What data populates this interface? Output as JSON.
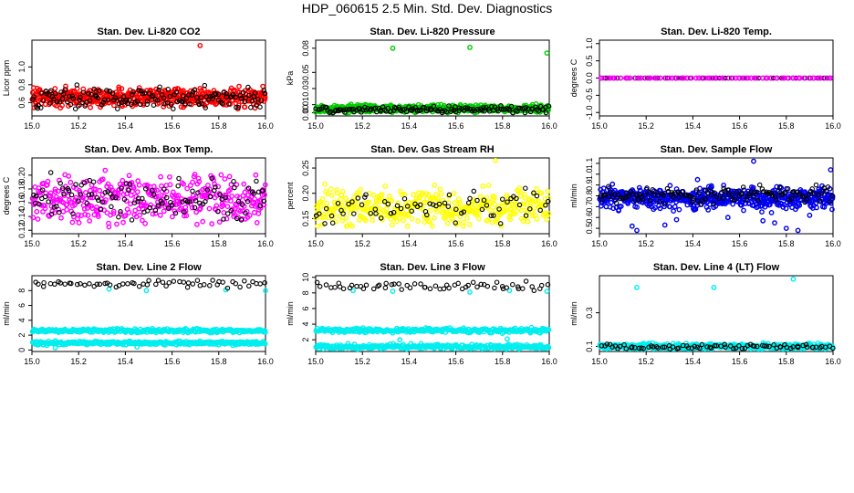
{
  "figure": {
    "title": "HDP_060615  2.5 Min. Std. Dev. Diagnostics"
  },
  "chart_data": [
    {
      "type": "scatter",
      "title": "Stan. Dev. Li-820 CO2",
      "ylabel": "Licor ppm",
      "xlim": [
        15.0,
        16.0
      ],
      "xticks": [
        "15.0",
        "15.2",
        "15.4",
        "15.6",
        "15.8",
        "16.0"
      ],
      "ylim": [
        0.45,
        1.3
      ],
      "yticks": [
        0.6,
        0.8,
        1.0
      ],
      "ytick_labels": [
        "0.6",
        "0.8",
        "1.0"
      ],
      "series": [
        {
          "color": "#ff0000",
          "n": 480,
          "mean": 0.66,
          "sd": 0.05,
          "min": 0.53,
          "max": 0.8,
          "outliers": [
            [
              15.72,
              1.24
            ]
          ]
        },
        {
          "color": "#000000",
          "n": 150,
          "mean": 0.66,
          "sd": 0.06,
          "min": 0.53,
          "max": 0.8,
          "outliers": []
        }
      ]
    },
    {
      "type": "scatter",
      "title": "Stan. Dev. Li-820 Pressure",
      "ylabel": "kPa",
      "xlim": [
        15.0,
        16.0
      ],
      "xticks": [
        "15.0",
        "15.2",
        "15.4",
        "15.6",
        "15.8",
        "16.0"
      ],
      "ylim": [
        -0.004,
        0.09
      ],
      "yticks": [
        0.0,
        0.01,
        0.03,
        0.05,
        0.08
      ],
      "ytick_labels": [
        "0.00",
        "0.01",
        "0.03",
        "0.05",
        "0.08"
      ],
      "series": [
        {
          "color": "#00cc00",
          "n": 480,
          "mean": 0.005,
          "sd": 0.0025,
          "min": 0.0,
          "max": 0.012,
          "outliers": [
            [
              15.33,
              0.08
            ],
            [
              15.66,
              0.081
            ],
            [
              15.99,
              0.074
            ]
          ]
        },
        {
          "color": "#000000",
          "n": 140,
          "mean": 0.004,
          "sd": 0.002,
          "min": 0.0,
          "max": 0.01,
          "outliers": []
        }
      ]
    },
    {
      "type": "scatter",
      "title": "Stan. Dev. Li-820 Temp.",
      "ylabel": "degrees C",
      "xlim": [
        15.0,
        16.0
      ],
      "xticks": [
        "15.0",
        "15.2",
        "15.4",
        "15.6",
        "15.8",
        "16.0"
      ],
      "ylim": [
        -1.1,
        1.1
      ],
      "yticks": [
        -1.0,
        -0.5,
        0.0,
        0.5,
        1.0
      ],
      "ytick_labels": [
        "-1.0",
        "-0.5",
        "0.0",
        "0.5",
        "1.0"
      ],
      "series": [
        {
          "color": "#000000",
          "n": 70,
          "mean": 0.0,
          "sd": 0.0,
          "min": 0.0,
          "max": 0.0,
          "outliers": []
        },
        {
          "color": "#ff00ff",
          "n": 70,
          "mean": 0.0,
          "sd": 0.0,
          "min": 0.0,
          "max": 0.0,
          "outliers": []
        }
      ]
    },
    {
      "type": "scatter",
      "title": "Stan. Dev. Amb. Box Temp.",
      "ylabel": "degrees C",
      "xlim": [
        15.0,
        16.0
      ],
      "xticks": [
        "15.0",
        "15.2",
        "15.4",
        "15.6",
        "15.8",
        "16.0"
      ],
      "ylim": [
        0.115,
        0.225
      ],
      "yticks": [
        0.12,
        0.14,
        0.16,
        0.18,
        0.2
      ],
      "ytick_labels": [
        "0.12",
        "0.14",
        "0.16",
        "0.18",
        "0.20"
      ],
      "series": [
        {
          "color": "#ff00ff",
          "n": 380,
          "mean": 0.165,
          "sd": 0.017,
          "min": 0.125,
          "max": 0.22,
          "outliers": []
        },
        {
          "color": "#000000",
          "n": 110,
          "mean": 0.168,
          "sd": 0.016,
          "min": 0.135,
          "max": 0.205,
          "outliers": []
        }
      ]
    },
    {
      "type": "scatter",
      "title": "Stan. Dev. Gas Stream RH",
      "ylabel": "percent",
      "xlim": [
        15.0,
        16.0
      ],
      "xticks": [
        "15.0",
        "15.2",
        "15.4",
        "15.6",
        "15.8",
        "16.0"
      ],
      "ylim": [
        0.12,
        0.27
      ],
      "yticks": [
        0.15,
        0.2,
        0.25
      ],
      "ytick_labels": [
        "0.15",
        "0.20",
        "0.25"
      ],
      "series": [
        {
          "color": "#ffff00",
          "n": 380,
          "mean": 0.17,
          "sd": 0.018,
          "min": 0.135,
          "max": 0.225,
          "outliers": [
            [
              15.77,
              0.265
            ]
          ]
        },
        {
          "color": "#000000",
          "n": 70,
          "mean": 0.172,
          "sd": 0.017,
          "min": 0.14,
          "max": 0.21,
          "outliers": []
        }
      ]
    },
    {
      "type": "scatter",
      "title": "Stan. Dev. Sample Flow",
      "ylabel": "ml/min",
      "xlim": [
        15.0,
        16.0
      ],
      "xticks": [
        "15.0",
        "15.2",
        "15.4",
        "15.6",
        "15.8",
        "16.0"
      ],
      "ylim": [
        0.45,
        1.15
      ],
      "yticks": [
        0.5,
        0.6,
        0.7,
        0.8,
        0.9,
        1.0,
        1.1
      ],
      "ytick_labels": [
        "0.5",
        "0.6",
        "0.7",
        "0.8",
        "0.9",
        "1.0",
        "1.1"
      ],
      "series": [
        {
          "color": "#0000ee",
          "n": 560,
          "mean": 0.78,
          "sd": 0.05,
          "min": 0.6,
          "max": 0.92,
          "outliers": [
            [
              15.14,
              0.52
            ],
            [
              15.16,
              0.48
            ],
            [
              15.28,
              0.53
            ],
            [
              15.33,
              0.58
            ],
            [
              15.42,
              0.95
            ],
            [
              15.48,
              0.88
            ],
            [
              15.55,
              0.6
            ],
            [
              15.66,
              1.12
            ],
            [
              15.7,
              0.57
            ],
            [
              15.75,
              0.55
            ],
            [
              15.8,
              0.5
            ],
            [
              15.85,
              0.48
            ],
            [
              15.9,
              0.62
            ],
            [
              15.99,
              1.04
            ]
          ]
        },
        {
          "color": "#000000",
          "n": 130,
          "mean": 0.8,
          "sd": 0.04,
          "min": 0.72,
          "max": 0.9,
          "outliers": []
        }
      ]
    },
    {
      "type": "scatter",
      "title": "Stan. Dev. Line 2 Flow",
      "ylabel": "ml/min",
      "xlim": [
        15.0,
        16.0
      ],
      "xticks": [
        "15.0",
        "15.2",
        "15.4",
        "15.6",
        "15.8",
        "16.0"
      ],
      "ylim": [
        -0.2,
        10.0
      ],
      "yticks": [
        0,
        2,
        4,
        6,
        8
      ],
      "ytick_labels": [
        "0",
        "2",
        "4",
        "6",
        "8"
      ],
      "series": [
        {
          "color": "#00eeee",
          "n": 300,
          "mean": 2.6,
          "sd": 0.12,
          "min": 2.3,
          "max": 2.9,
          "outliers": []
        },
        {
          "color": "#00eeee",
          "n": 300,
          "mean": 0.95,
          "sd": 0.12,
          "min": 0.6,
          "max": 1.3,
          "outliers": [
            [
              15.33,
              8.2
            ],
            [
              15.49,
              8.0
            ],
            [
              15.83,
              8.1
            ],
            [
              16.0,
              8.0
            ],
            [
              15.1,
              0.3
            ],
            [
              15.45,
              0.4
            ]
          ]
        },
        {
          "color": "#000000",
          "n": 60,
          "mean": 8.9,
          "sd": 0.25,
          "min": 8.3,
          "max": 9.4,
          "outliers": []
        }
      ]
    },
    {
      "type": "scatter",
      "title": "Stan. Dev. Line 3 Flow",
      "ylabel": "ml/min",
      "xlim": [
        15.0,
        16.0
      ],
      "xticks": [
        "15.0",
        "15.2",
        "15.4",
        "15.6",
        "15.8",
        "16.0"
      ],
      "ylim": [
        0.5,
        10.2
      ],
      "yticks": [
        2,
        4,
        6,
        8,
        10
      ],
      "ytick_labels": [
        "2",
        "4",
        "6",
        "8",
        "10"
      ],
      "series": [
        {
          "color": "#00eeee",
          "n": 300,
          "mean": 3.2,
          "sd": 0.15,
          "min": 2.8,
          "max": 3.7,
          "outliers": []
        },
        {
          "color": "#00eeee",
          "n": 300,
          "mean": 1.1,
          "sd": 0.15,
          "min": 0.8,
          "max": 1.5,
          "outliers": [
            [
              15.16,
              8.3
            ],
            [
              15.33,
              8.2
            ],
            [
              15.66,
              8.1
            ],
            [
              15.83,
              8.3
            ],
            [
              15.99,
              8.2
            ],
            [
              15.36,
              2.0
            ],
            [
              15.82,
              2.1
            ]
          ]
        },
        {
          "color": "#000000",
          "n": 60,
          "mean": 8.9,
          "sd": 0.25,
          "min": 8.3,
          "max": 9.5,
          "outliers": []
        }
      ]
    },
    {
      "type": "scatter",
      "title": "Stan. Dev. Line 4 (LT) Flow",
      "ylabel": "ml/min",
      "xlim": [
        15.0,
        16.0
      ],
      "xticks": [
        "15.0",
        "15.2",
        "15.4",
        "15.6",
        "15.8",
        "16.0"
      ],
      "ylim": [
        0.07,
        0.52
      ],
      "yticks": [
        0.1,
        0.3
      ],
      "ytick_labels": [
        "0.1",
        "0.3"
      ],
      "series": [
        {
          "color": "#00eeee",
          "n": 450,
          "mean": 0.1,
          "sd": 0.008,
          "min": 0.085,
          "max": 0.13,
          "outliers": [
            [
              15.16,
              0.45
            ],
            [
              15.49,
              0.45
            ],
            [
              15.83,
              0.5
            ]
          ]
        },
        {
          "color": "#000000",
          "n": 80,
          "mean": 0.1,
          "sd": 0.007,
          "min": 0.085,
          "max": 0.12,
          "outliers": []
        }
      ]
    }
  ]
}
